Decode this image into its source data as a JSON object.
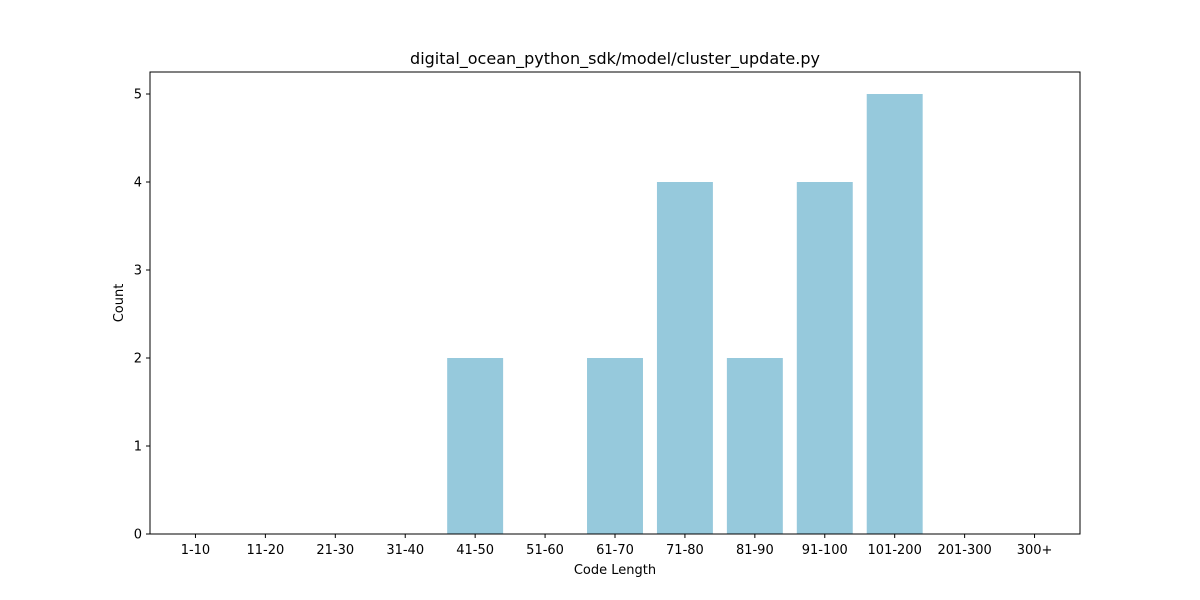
{
  "chart_data": {
    "type": "bar",
    "title": "digital_ocean_python_sdk/model/cluster_update.py",
    "xlabel": "Code Length",
    "ylabel": "Count",
    "categories": [
      "1-10",
      "11-20",
      "21-30",
      "31-40",
      "41-50",
      "51-60",
      "61-70",
      "71-80",
      "81-90",
      "91-100",
      "101-200",
      "201-300",
      "300+"
    ],
    "values": [
      0,
      0,
      0,
      0,
      2,
      0,
      2,
      4,
      2,
      4,
      5,
      0,
      0
    ],
    "yticks": [
      0,
      1,
      2,
      3,
      4,
      5
    ],
    "ylim": [
      0,
      5.25
    ],
    "grid": false,
    "colors": {
      "bar": "#96c9dc"
    }
  }
}
